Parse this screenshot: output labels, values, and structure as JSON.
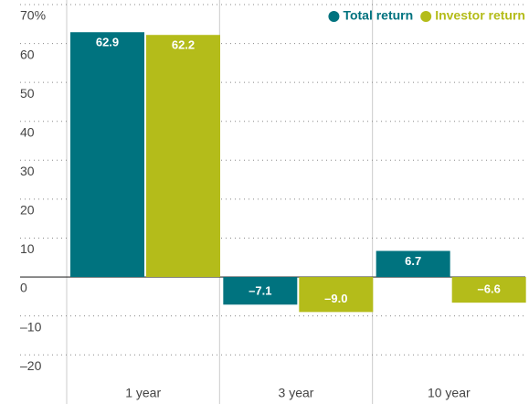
{
  "chart_data": {
    "type": "bar",
    "categories": [
      "1 year",
      "3 year",
      "10 year"
    ],
    "series": [
      {
        "name": "Total return",
        "color": "#00737f",
        "values": [
          62.9,
          -7.1,
          6.7
        ],
        "value_labels": [
          "62.9",
          "–7.1",
          "6.7"
        ]
      },
      {
        "name": "Investor return",
        "color": "#b4bc1a",
        "values": [
          62.2,
          -9.0,
          -6.6
        ],
        "value_labels": [
          "62.2",
          "–9.0",
          "–6.6"
        ]
      }
    ],
    "ylim": [
      -27,
      70
    ],
    "yticks": [
      {
        "value": 70,
        "label": "70%"
      },
      60,
      50,
      40,
      30,
      20,
      10,
      0,
      {
        "value": -10,
        "label": "–10"
      },
      {
        "value": -20,
        "label": "–20"
      }
    ],
    "grid": true,
    "legend": "top-right"
  }
}
